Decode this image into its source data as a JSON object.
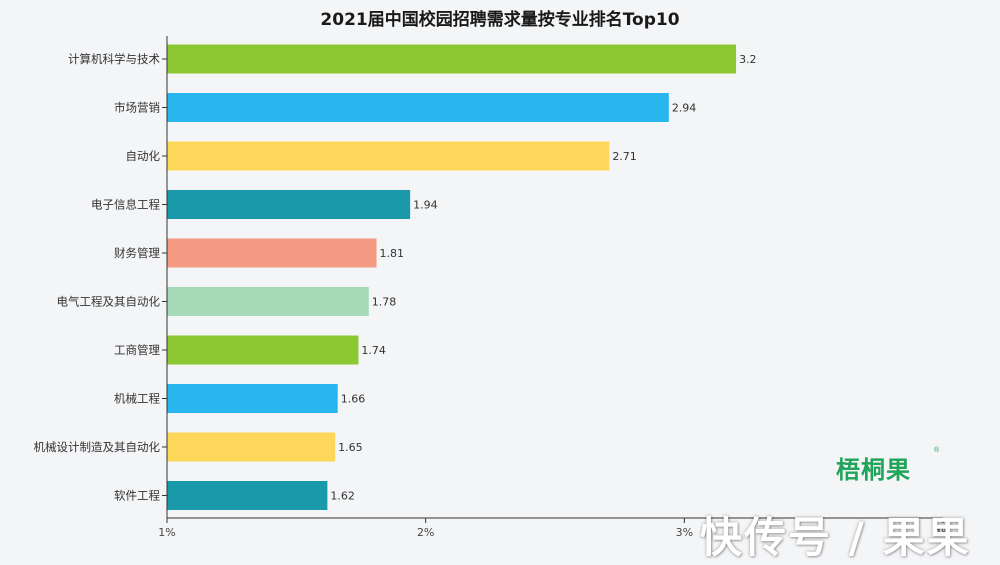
{
  "chart_data": {
    "type": "bar",
    "orientation": "horizontal",
    "title": "2021届中国校园招聘需求量按专业排名Top10",
    "categories": [
      "计算机科学与技术",
      "市场营销",
      "自动化",
      "电子信息工程",
      "财务管理",
      "电气工程及其自动化",
      "工商管理",
      "机械工程",
      "机械设计制造及其自动化",
      "软件工程"
    ],
    "values": [
      3.2,
      2.94,
      2.71,
      1.94,
      1.81,
      1.78,
      1.74,
      1.66,
      1.65,
      1.62
    ],
    "value_labels": [
      "3.2",
      "2.94",
      "2.71",
      "1.94",
      "1.81",
      "1.78",
      "1.74",
      "1.66",
      "1.65",
      "1.62"
    ],
    "colors": [
      "#8cc832",
      "#29b6ee",
      "#fdd75a",
      "#1a9aa8",
      "#f59a82",
      "#a6d9b6",
      "#8cc832",
      "#29b6ee",
      "#fdd75a",
      "#1a9aa8"
    ],
    "xlim": [
      1,
      4
    ],
    "xticks": [
      1,
      2,
      3,
      4
    ],
    "xtick_labels": [
      "1%",
      "2%",
      "3%",
      "4%"
    ],
    "grid": false,
    "legend": "none"
  },
  "brand": "梧桐果",
  "brand_mark": "®",
  "watermark": "快传号 / 果果"
}
